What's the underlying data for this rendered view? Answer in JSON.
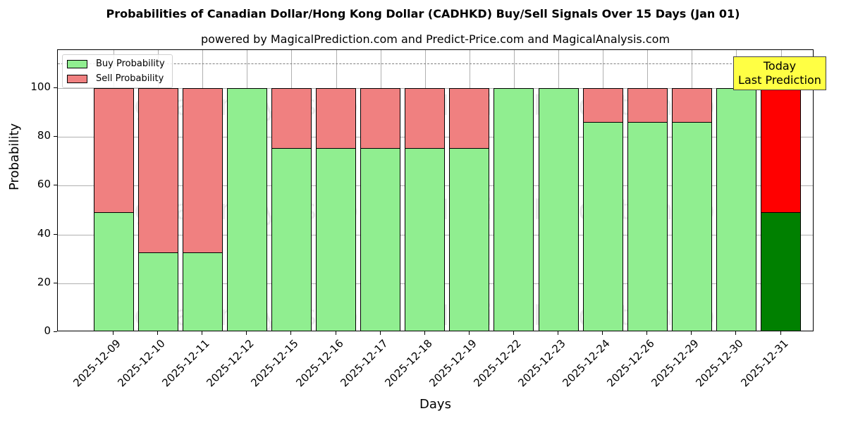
{
  "chart_data": {
    "type": "bar",
    "stacked": true,
    "title": "Probabilities of Canadian Dollar/Hong Kong Dollar (CADHKD) Buy/Sell Signals Over 15 Days (Jan 01)",
    "subtitle": "powered by MagicalPrediction.com and Predict-Price.com and MagicalAnalysis.com",
    "xlabel": "Days",
    "ylabel": "Probability",
    "ylim": [
      0,
      115
    ],
    "yticks": [
      0,
      20,
      40,
      60,
      80,
      100
    ],
    "grid": true,
    "legend_position": "upper left",
    "categories": [
      "2025-12-09",
      "2025-12-10",
      "2025-12-11",
      "2025-12-12",
      "2025-12-15",
      "2025-12-16",
      "2025-12-17",
      "2025-12-18",
      "2025-12-19",
      "2025-12-22",
      "2025-12-23",
      "2025-12-24",
      "2025-12-26",
      "2025-12-29",
      "2025-12-30",
      "2025-12-31"
    ],
    "series": [
      {
        "name": "Buy Probability",
        "color": "#90ee90",
        "values": [
          49.1,
          32.7,
          32.7,
          100,
          75.4,
          75.4,
          75.4,
          75.4,
          75.4,
          100,
          100,
          86.1,
          86.1,
          86.1,
          100,
          49.1
        ]
      },
      {
        "name": "Sell Probability",
        "color": "#f08080",
        "values": [
          50.9,
          67.3,
          67.3,
          0,
          24.6,
          24.6,
          24.6,
          24.6,
          24.6,
          0,
          0,
          13.9,
          13.9,
          13.9,
          0,
          50.9
        ]
      }
    ],
    "highlight_last": {
      "buy_color": "#008000",
      "sell_color": "#ff0000"
    },
    "reference_line": {
      "y": 110,
      "style": "dashed"
    },
    "annotation": "Today\nLast Prediction"
  },
  "labels": {
    "annotation_line1": "Today",
    "annotation_line2": "Last Prediction",
    "watermarks": [
      "MagicalAnalysis.com",
      "MagicalPrediction.com"
    ]
  }
}
